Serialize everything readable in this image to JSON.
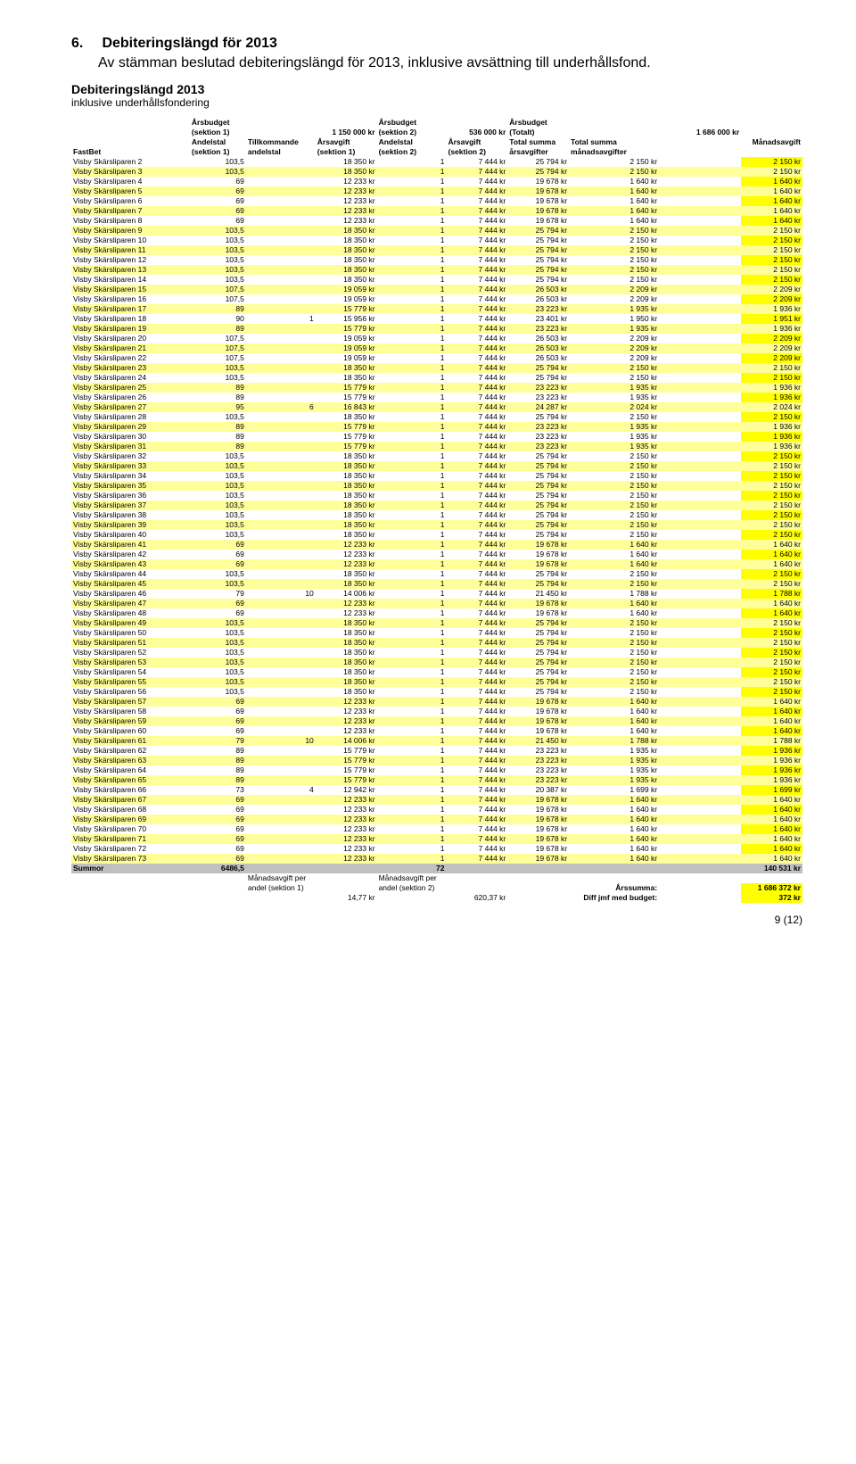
{
  "heading_num": "6.",
  "heading": "Debiteringslängd för 2013",
  "intro": "Av stämman beslutad debiteringslängd för 2013, inklusive avsättning till underhållsfond.",
  "sub1": "Debiteringslängd 2013",
  "sub2": "inklusive underhållsfondering",
  "hdr": {
    "ab": "Årsbudget",
    "s1": "(sektion 1)",
    "s1v": "1 150 000 kr",
    "s2": "(sektion 2)",
    "s2v": "536 000 kr",
    "tot": "(Totalt)",
    "totv": "1 686 000 kr",
    "fast": "FastBet",
    "and": "Andelstal",
    "tk": "Tillkommande",
    "ae": "andelstal",
    "aa": "Årsavgift",
    "ts": "Total summa",
    "aag": "årsavgifter",
    "ma": "Månadsavgift",
    "mag": "månadsavgifter"
  },
  "rows": [
    {
      "n": "Visby Skärsliparen 2",
      "a": "103,5",
      "t": "",
      "f": "18 350 kr",
      "b": "1",
      "g": "7 444 kr",
      "ts": "25 794 kr",
      "tm": "2 150 kr",
      "m": "2 150 kr"
    },
    {
      "n": "Visby Skärsliparen 3",
      "a": "103,5",
      "t": "",
      "f": "18 350 kr",
      "b": "1",
      "g": "7 444 kr",
      "ts": "25 794 kr",
      "tm": "2 150 kr",
      "m": "2 150 kr"
    },
    {
      "n": "Visby Skärsliparen 4",
      "a": "69",
      "t": "",
      "f": "12 233 kr",
      "b": "1",
      "g": "7 444 kr",
      "ts": "19 678 kr",
      "tm": "1 640 kr",
      "m": "1 640 kr"
    },
    {
      "n": "Visby Skärsliparen 5",
      "a": "69",
      "t": "",
      "f": "12 233 kr",
      "b": "1",
      "g": "7 444 kr",
      "ts": "19 678 kr",
      "tm": "1 640 kr",
      "m": "1 640 kr"
    },
    {
      "n": "Visby Skärsliparen 6",
      "a": "69",
      "t": "",
      "f": "12 233 kr",
      "b": "1",
      "g": "7 444 kr",
      "ts": "19 678 kr",
      "tm": "1 640 kr",
      "m": "1 640 kr"
    },
    {
      "n": "Visby Skärsliparen 7",
      "a": "69",
      "t": "",
      "f": "12 233 kr",
      "b": "1",
      "g": "7 444 kr",
      "ts": "19 678 kr",
      "tm": "1 640 kr",
      "m": "1 640 kr"
    },
    {
      "n": "Visby Skärsliparen 8",
      "a": "69",
      "t": "",
      "f": "12 233 kr",
      "b": "1",
      "g": "7 444 kr",
      "ts": "19 678 kr",
      "tm": "1 640 kr",
      "m": "1 640 kr"
    },
    {
      "n": "Visby Skärsliparen 9",
      "a": "103,5",
      "t": "",
      "f": "18 350 kr",
      "b": "1",
      "g": "7 444 kr",
      "ts": "25 794 kr",
      "tm": "2 150 kr",
      "m": "2 150 kr"
    },
    {
      "n": "Visby Skärsliparen 10",
      "a": "103,5",
      "t": "",
      "f": "18 350 kr",
      "b": "1",
      "g": "7 444 kr",
      "ts": "25 794 kr",
      "tm": "2 150 kr",
      "m": "2 150 kr"
    },
    {
      "n": "Visby Skärsliparen 11",
      "a": "103,5",
      "t": "",
      "f": "18 350 kr",
      "b": "1",
      "g": "7 444 kr",
      "ts": "25 794 kr",
      "tm": "2 150 kr",
      "m": "2 150 kr"
    },
    {
      "n": "Visby Skärsliparen 12",
      "a": "103,5",
      "t": "",
      "f": "18 350 kr",
      "b": "1",
      "g": "7 444 kr",
      "ts": "25 794 kr",
      "tm": "2 150 kr",
      "m": "2 150 kr"
    },
    {
      "n": "Visby Skärsliparen 13",
      "a": "103,5",
      "t": "",
      "f": "18 350 kr",
      "b": "1",
      "g": "7 444 kr",
      "ts": "25 794 kr",
      "tm": "2 150 kr",
      "m": "2 150 kr"
    },
    {
      "n": "Visby Skärsliparen 14",
      "a": "103,5",
      "t": "",
      "f": "18 350 kr",
      "b": "1",
      "g": "7 444 kr",
      "ts": "25 794 kr",
      "tm": "2 150 kr",
      "m": "2 150 kr"
    },
    {
      "n": "Visby Skärsliparen 15",
      "a": "107,5",
      "t": "",
      "f": "19 059 kr",
      "b": "1",
      "g": "7 444 kr",
      "ts": "26 503 kr",
      "tm": "2 209 kr",
      "m": "2 209 kr"
    },
    {
      "n": "Visby Skärsliparen 16",
      "a": "107,5",
      "t": "",
      "f": "19 059 kr",
      "b": "1",
      "g": "7 444 kr",
      "ts": "26 503 kr",
      "tm": "2 209 kr",
      "m": "2 209 kr"
    },
    {
      "n": "Visby Skärsliparen 17",
      "a": "89",
      "t": "",
      "f": "15 779 kr",
      "b": "1",
      "g": "7 444 kr",
      "ts": "23 223 kr",
      "tm": "1 935 kr",
      "m": "1 936 kr"
    },
    {
      "n": "Visby Skärsliparen 18",
      "a": "90",
      "t": "1",
      "f": "15 956 kr",
      "b": "1",
      "g": "7 444 kr",
      "ts": "23 401 kr",
      "tm": "1 950 kr",
      "m": "1 951 kr"
    },
    {
      "n": "Visby Skärsliparen 19",
      "a": "89",
      "t": "",
      "f": "15 779 kr",
      "b": "1",
      "g": "7 444 kr",
      "ts": "23 223 kr",
      "tm": "1 935 kr",
      "m": "1 936 kr"
    },
    {
      "n": "Visby Skärsliparen 20",
      "a": "107,5",
      "t": "",
      "f": "19 059 kr",
      "b": "1",
      "g": "7 444 kr",
      "ts": "26 503 kr",
      "tm": "2 209 kr",
      "m": "2 209 kr"
    },
    {
      "n": "Visby Skärsliparen 21",
      "a": "107,5",
      "t": "",
      "f": "19 059 kr",
      "b": "1",
      "g": "7 444 kr",
      "ts": "26 503 kr",
      "tm": "2 209 kr",
      "m": "2 209 kr"
    },
    {
      "n": "Visby Skärsliparen 22",
      "a": "107,5",
      "t": "",
      "f": "19 059 kr",
      "b": "1",
      "g": "7 444 kr",
      "ts": "26 503 kr",
      "tm": "2 209 kr",
      "m": "2 209 kr"
    },
    {
      "n": "Visby Skärsliparen 23",
      "a": "103,5",
      "t": "",
      "f": "18 350 kr",
      "b": "1",
      "g": "7 444 kr",
      "ts": "25 794 kr",
      "tm": "2 150 kr",
      "m": "2 150 kr"
    },
    {
      "n": "Visby Skärsliparen 24",
      "a": "103,5",
      "t": "",
      "f": "18 350 kr",
      "b": "1",
      "g": "7 444 kr",
      "ts": "25 794 kr",
      "tm": "2 150 kr",
      "m": "2 150 kr"
    },
    {
      "n": "Visby Skärsliparen 25",
      "a": "89",
      "t": "",
      "f": "15 779 kr",
      "b": "1",
      "g": "7 444 kr",
      "ts": "23 223 kr",
      "tm": "1 935 kr",
      "m": "1 936 kr"
    },
    {
      "n": "Visby Skärsliparen 26",
      "a": "89",
      "t": "",
      "f": "15 779 kr",
      "b": "1",
      "g": "7 444 kr",
      "ts": "23 223 kr",
      "tm": "1 935 kr",
      "m": "1 936 kr"
    },
    {
      "n": "Visby Skärsliparen 27",
      "a": "95",
      "t": "6",
      "f": "16 843 kr",
      "b": "1",
      "g": "7 444 kr",
      "ts": "24 287 kr",
      "tm": "2 024 kr",
      "m": "2 024 kr"
    },
    {
      "n": "Visby Skärsliparen 28",
      "a": "103,5",
      "t": "",
      "f": "18 350 kr",
      "b": "1",
      "g": "7 444 kr",
      "ts": "25 794 kr",
      "tm": "2 150 kr",
      "m": "2 150 kr"
    },
    {
      "n": "Visby Skärsliparen 29",
      "a": "89",
      "t": "",
      "f": "15 779 kr",
      "b": "1",
      "g": "7 444 kr",
      "ts": "23 223 kr",
      "tm": "1 935 kr",
      "m": "1 936 kr"
    },
    {
      "n": "Visby Skärsliparen 30",
      "a": "89",
      "t": "",
      "f": "15 779 kr",
      "b": "1",
      "g": "7 444 kr",
      "ts": "23 223 kr",
      "tm": "1 935 kr",
      "m": "1 936 kr"
    },
    {
      "n": "Visby Skärsliparen 31",
      "a": "89",
      "t": "",
      "f": "15 779 kr",
      "b": "1",
      "g": "7 444 kr",
      "ts": "23 223 kr",
      "tm": "1 935 kr",
      "m": "1 936 kr"
    },
    {
      "n": "Visby Skärsliparen 32",
      "a": "103,5",
      "t": "",
      "f": "18 350 kr",
      "b": "1",
      "g": "7 444 kr",
      "ts": "25 794 kr",
      "tm": "2 150 kr",
      "m": "2 150 kr"
    },
    {
      "n": "Visby Skärsliparen 33",
      "a": "103,5",
      "t": "",
      "f": "18 350 kr",
      "b": "1",
      "g": "7 444 kr",
      "ts": "25 794 kr",
      "tm": "2 150 kr",
      "m": "2 150 kr"
    },
    {
      "n": "Visby Skärsliparen 34",
      "a": "103,5",
      "t": "",
      "f": "18 350 kr",
      "b": "1",
      "g": "7 444 kr",
      "ts": "25 794 kr",
      "tm": "2 150 kr",
      "m": "2 150 kr"
    },
    {
      "n": "Visby Skärsliparen 35",
      "a": "103,5",
      "t": "",
      "f": "18 350 kr",
      "b": "1",
      "g": "7 444 kr",
      "ts": "25 794 kr",
      "tm": "2 150 kr",
      "m": "2 150 kr"
    },
    {
      "n": "Visby Skärsliparen 36",
      "a": "103,5",
      "t": "",
      "f": "18 350 kr",
      "b": "1",
      "g": "7 444 kr",
      "ts": "25 794 kr",
      "tm": "2 150 kr",
      "m": "2 150 kr"
    },
    {
      "n": "Visby Skärsliparen 37",
      "a": "103,5",
      "t": "",
      "f": "18 350 kr",
      "b": "1",
      "g": "7 444 kr",
      "ts": "25 794 kr",
      "tm": "2 150 kr",
      "m": "2 150 kr"
    },
    {
      "n": "Visby Skärsliparen 38",
      "a": "103,5",
      "t": "",
      "f": "18 350 kr",
      "b": "1",
      "g": "7 444 kr",
      "ts": "25 794 kr",
      "tm": "2 150 kr",
      "m": "2 150 kr"
    },
    {
      "n": "Visby Skärsliparen 39",
      "a": "103,5",
      "t": "",
      "f": "18 350 kr",
      "b": "1",
      "g": "7 444 kr",
      "ts": "25 794 kr",
      "tm": "2 150 kr",
      "m": "2 150 kr"
    },
    {
      "n": "Visby Skärsliparen 40",
      "a": "103,5",
      "t": "",
      "f": "18 350 kr",
      "b": "1",
      "g": "7 444 kr",
      "ts": "25 794 kr",
      "tm": "2 150 kr",
      "m": "2 150 kr"
    },
    {
      "n": "Visby Skärsliparen 41",
      "a": "69",
      "t": "",
      "f": "12 233 kr",
      "b": "1",
      "g": "7 444 kr",
      "ts": "19 678 kr",
      "tm": "1 640 kr",
      "m": "1 640 kr"
    },
    {
      "n": "Visby Skärsliparen 42",
      "a": "69",
      "t": "",
      "f": "12 233 kr",
      "b": "1",
      "g": "7 444 kr",
      "ts": "19 678 kr",
      "tm": "1 640 kr",
      "m": "1 640 kr"
    },
    {
      "n": "Visby Skärsliparen 43",
      "a": "69",
      "t": "",
      "f": "12 233 kr",
      "b": "1",
      "g": "7 444 kr",
      "ts": "19 678 kr",
      "tm": "1 640 kr",
      "m": "1 640 kr"
    },
    {
      "n": "Visby Skärsliparen 44",
      "a": "103,5",
      "t": "",
      "f": "18 350 kr",
      "b": "1",
      "g": "7 444 kr",
      "ts": "25 794 kr",
      "tm": "2 150 kr",
      "m": "2 150 kr"
    },
    {
      "n": "Visby Skärsliparen 45",
      "a": "103,5",
      "t": "",
      "f": "18 350 kr",
      "b": "1",
      "g": "7 444 kr",
      "ts": "25 794 kr",
      "tm": "2 150 kr",
      "m": "2 150 kr"
    },
    {
      "n": "Visby Skärsliparen 46",
      "a": "79",
      "t": "10",
      "f": "14 006 kr",
      "b": "1",
      "g": "7 444 kr",
      "ts": "21 450 kr",
      "tm": "1 788 kr",
      "m": "1 788 kr"
    },
    {
      "n": "Visby Skärsliparen 47",
      "a": "69",
      "t": "",
      "f": "12 233 kr",
      "b": "1",
      "g": "7 444 kr",
      "ts": "19 678 kr",
      "tm": "1 640 kr",
      "m": "1 640 kr"
    },
    {
      "n": "Visby Skärsliparen 48",
      "a": "69",
      "t": "",
      "f": "12 233 kr",
      "b": "1",
      "g": "7 444 kr",
      "ts": "19 678 kr",
      "tm": "1 640 kr",
      "m": "1 640 kr"
    },
    {
      "n": "Visby Skärsliparen 49",
      "a": "103,5",
      "t": "",
      "f": "18 350 kr",
      "b": "1",
      "g": "7 444 kr",
      "ts": "25 794 kr",
      "tm": "2 150 kr",
      "m": "2 150 kr"
    },
    {
      "n": "Visby Skärsliparen 50",
      "a": "103,5",
      "t": "",
      "f": "18 350 kr",
      "b": "1",
      "g": "7 444 kr",
      "ts": "25 794 kr",
      "tm": "2 150 kr",
      "m": "2 150 kr"
    },
    {
      "n": "Visby Skärsliparen 51",
      "a": "103,5",
      "t": "",
      "f": "18 350 kr",
      "b": "1",
      "g": "7 444 kr",
      "ts": "25 794 kr",
      "tm": "2 150 kr",
      "m": "2 150 kr"
    },
    {
      "n": "Visby Skärsliparen 52",
      "a": "103,5",
      "t": "",
      "f": "18 350 kr",
      "b": "1",
      "g": "7 444 kr",
      "ts": "25 794 kr",
      "tm": "2 150 kr",
      "m": "2 150 kr"
    },
    {
      "n": "Visby Skärsliparen 53",
      "a": "103,5",
      "t": "",
      "f": "18 350 kr",
      "b": "1",
      "g": "7 444 kr",
      "ts": "25 794 kr",
      "tm": "2 150 kr",
      "m": "2 150 kr"
    },
    {
      "n": "Visby Skärsliparen 54",
      "a": "103,5",
      "t": "",
      "f": "18 350 kr",
      "b": "1",
      "g": "7 444 kr",
      "ts": "25 794 kr",
      "tm": "2 150 kr",
      "m": "2 150 kr"
    },
    {
      "n": "Visby Skärsliparen 55",
      "a": "103,5",
      "t": "",
      "f": "18 350 kr",
      "b": "1",
      "g": "7 444 kr",
      "ts": "25 794 kr",
      "tm": "2 150 kr",
      "m": "2 150 kr"
    },
    {
      "n": "Visby Skärsliparen 56",
      "a": "103,5",
      "t": "",
      "f": "18 350 kr",
      "b": "1",
      "g": "7 444 kr",
      "ts": "25 794 kr",
      "tm": "2 150 kr",
      "m": "2 150 kr"
    },
    {
      "n": "Visby Skärsliparen 57",
      "a": "69",
      "t": "",
      "f": "12 233 kr",
      "b": "1",
      "g": "7 444 kr",
      "ts": "19 678 kr",
      "tm": "1 640 kr",
      "m": "1 640 kr"
    },
    {
      "n": "Visby Skärsliparen 58",
      "a": "69",
      "t": "",
      "f": "12 233 kr",
      "b": "1",
      "g": "7 444 kr",
      "ts": "19 678 kr",
      "tm": "1 640 kr",
      "m": "1 640 kr"
    },
    {
      "n": "Visby Skärsliparen 59",
      "a": "69",
      "t": "",
      "f": "12 233 kr",
      "b": "1",
      "g": "7 444 kr",
      "ts": "19 678 kr",
      "tm": "1 640 kr",
      "m": "1 640 kr"
    },
    {
      "n": "Visby Skärsliparen 60",
      "a": "69",
      "t": "",
      "f": "12 233 kr",
      "b": "1",
      "g": "7 444 kr",
      "ts": "19 678 kr",
      "tm": "1 640 kr",
      "m": "1 640 kr"
    },
    {
      "n": "Visby Skärsliparen 61",
      "a": "79",
      "t": "10",
      "f": "14 006 kr",
      "b": "1",
      "g": "7 444 kr",
      "ts": "21 450 kr",
      "tm": "1 788 kr",
      "m": "1 788 kr"
    },
    {
      "n": "Visby Skärsliparen 62",
      "a": "89",
      "t": "",
      "f": "15 779 kr",
      "b": "1",
      "g": "7 444 kr",
      "ts": "23 223 kr",
      "tm": "1 935 kr",
      "m": "1 936 kr"
    },
    {
      "n": "Visby Skärsliparen 63",
      "a": "89",
      "t": "",
      "f": "15 779 kr",
      "b": "1",
      "g": "7 444 kr",
      "ts": "23 223 kr",
      "tm": "1 935 kr",
      "m": "1 936 kr"
    },
    {
      "n": "Visby Skärsliparen 64",
      "a": "89",
      "t": "",
      "f": "15 779 kr",
      "b": "1",
      "g": "7 444 kr",
      "ts": "23 223 kr",
      "tm": "1 935 kr",
      "m": "1 936 kr"
    },
    {
      "n": "Visby Skärsliparen 65",
      "a": "89",
      "t": "",
      "f": "15 779 kr",
      "b": "1",
      "g": "7 444 kr",
      "ts": "23 223 kr",
      "tm": "1 935 kr",
      "m": "1 936 kr"
    },
    {
      "n": "Visby Skärsliparen 66",
      "a": "73",
      "t": "4",
      "f": "12 942 kr",
      "b": "1",
      "g": "7 444 kr",
      "ts": "20 387 kr",
      "tm": "1 699 kr",
      "m": "1 699 kr"
    },
    {
      "n": "Visby Skärsliparen 67",
      "a": "69",
      "t": "",
      "f": "12 233 kr",
      "b": "1",
      "g": "7 444 kr",
      "ts": "19 678 kr",
      "tm": "1 640 kr",
      "m": "1 640 kr"
    },
    {
      "n": "Visby Skärsliparen 68",
      "a": "69",
      "t": "",
      "f": "12 233 kr",
      "b": "1",
      "g": "7 444 kr",
      "ts": "19 678 kr",
      "tm": "1 640 kr",
      "m": "1 640 kr"
    },
    {
      "n": "Visby Skärsliparen 69",
      "a": "69",
      "t": "",
      "f": "12 233 kr",
      "b": "1",
      "g": "7 444 kr",
      "ts": "19 678 kr",
      "tm": "1 640 kr",
      "m": "1 640 kr"
    },
    {
      "n": "Visby Skärsliparen 70",
      "a": "69",
      "t": "",
      "f": "12 233 kr",
      "b": "1",
      "g": "7 444 kr",
      "ts": "19 678 kr",
      "tm": "1 640 kr",
      "m": "1 640 kr"
    },
    {
      "n": "Visby Skärsliparen 71",
      "a": "69",
      "t": "",
      "f": "12 233 kr",
      "b": "1",
      "g": "7 444 kr",
      "ts": "19 678 kr",
      "tm": "1 640 kr",
      "m": "1 640 kr"
    },
    {
      "n": "Visby Skärsliparen 72",
      "a": "69",
      "t": "",
      "f": "12 233 kr",
      "b": "1",
      "g": "7 444 kr",
      "ts": "19 678 kr",
      "tm": "1 640 kr",
      "m": "1 640 kr"
    },
    {
      "n": "Visby Skärsliparen 73",
      "a": "69",
      "t": "",
      "f": "12 233 kr",
      "b": "1",
      "g": "7 444 kr",
      "ts": "19 678 kr",
      "tm": "1 640 kr",
      "m": "1 640 kr"
    }
  ],
  "sum": {
    "label": "Summor",
    "a": "6486,5",
    "b": "72",
    "m": "140 531 kr"
  },
  "foot": {
    "mp1": "Månadsavgift per",
    "mp1b": "andel (sektion 1)",
    "v1": "14,77 kr",
    "mp2": "Månadsavgift per",
    "mp2b": "andel (sektion 2)",
    "v2": "620,37 kr",
    "as": "Årssumma:",
    "asv": "1 686 372 kr",
    "diff": "Diff jmf med budget:",
    "diffv": "372 kr"
  },
  "pagenum": "9 (12)"
}
